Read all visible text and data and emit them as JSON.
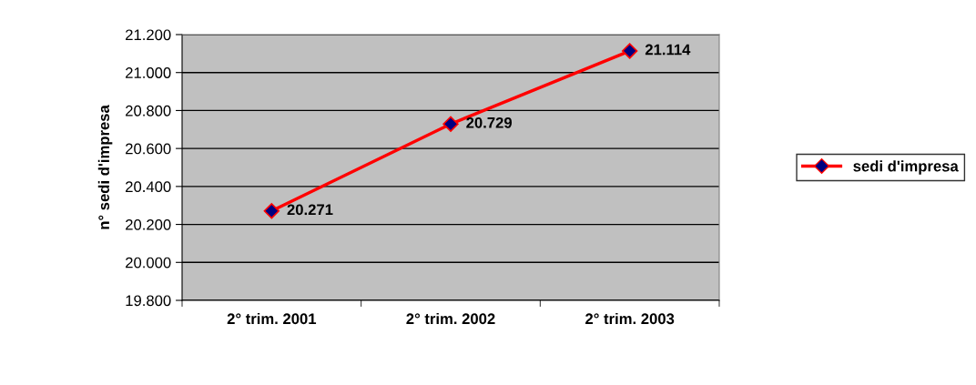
{
  "chart_data": {
    "type": "line",
    "ylabel": "n° sedi d'impresa",
    "categories": [
      "2° trim. 2001",
      "2° trim. 2002",
      "2° trim. 2003"
    ],
    "series": [
      {
        "name": "sedi d'impresa",
        "color": "#ff0000",
        "values": [
          20271,
          20729,
          21114
        ],
        "value_labels": [
          "20.271",
          "20.729",
          "21.114"
        ]
      }
    ],
    "ylim": [
      19800,
      21200
    ],
    "yticks": [
      {
        "value": 19800,
        "label": "19.800"
      },
      {
        "value": 20000,
        "label": "20.000"
      },
      {
        "value": 20200,
        "label": "20.200"
      },
      {
        "value": 20400,
        "label": "20.400"
      },
      {
        "value": 20600,
        "label": "20.600"
      },
      {
        "value": 20800,
        "label": "20.800"
      },
      {
        "value": 21000,
        "label": "21.000"
      },
      {
        "value": 21200,
        "label": "21.200"
      }
    ],
    "grid": "y",
    "legend": "right",
    "marker": "diamond",
    "line_style": "solid"
  }
}
